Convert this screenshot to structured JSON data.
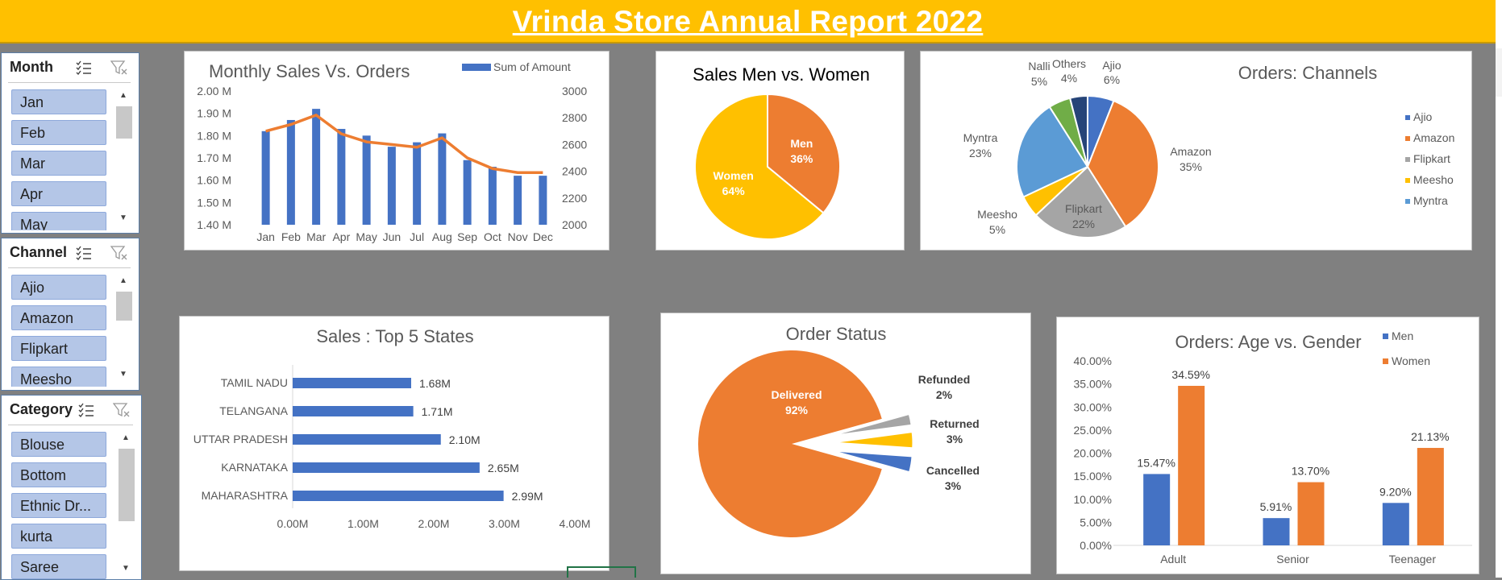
{
  "report_title": "Vrinda Store Annual Report 2022",
  "slicers": {
    "month": {
      "label": "Month",
      "items": [
        "Jan",
        "Feb",
        "Mar",
        "Apr",
        "May"
      ]
    },
    "channel": {
      "label": "Channel",
      "items": [
        "Ajio",
        "Amazon",
        "Flipkart",
        "Meesho"
      ]
    },
    "category": {
      "label": "Category",
      "items": [
        "Blouse",
        "Bottom",
        "Ethnic Dr...",
        "kurta",
        "Saree"
      ]
    }
  },
  "icons": {
    "multiselect": "multi-select-icon",
    "clear_filter": "clear-filter-icon",
    "scroll_up": "chevron-up-icon",
    "scroll_down": "chevron-down-icon"
  },
  "colors": {
    "banner": "#FFC000",
    "blue": "#4472C4",
    "orange": "#ED7D31",
    "gray": "#A5A5A5",
    "yellow": "#FFC000",
    "lightblue": "#5B9BD5",
    "green": "#70AD47",
    "navy": "#264478",
    "slicer_item": "#B4C6E7"
  },
  "chart_data": [
    {
      "type": "bar",
      "title": "Monthly Sales Vs. Orders",
      "legend": [
        "Sum of Amount"
      ],
      "legend_position": "top-right",
      "categories": [
        "Jan",
        "Feb",
        "Mar",
        "Apr",
        "May",
        "Jun",
        "Jul",
        "Aug",
        "Sep",
        "Oct",
        "Nov",
        "Dec"
      ],
      "series": [
        {
          "name": "Sum of Amount",
          "type": "bar",
          "axis": "left",
          "values": [
            1.82,
            1.87,
            1.92,
            1.83,
            1.8,
            1.75,
            1.77,
            1.81,
            1.69,
            1.66,
            1.62,
            1.62
          ]
        },
        {
          "type": "line",
          "axis": "right",
          "values": [
            2700,
            2750,
            2820,
            2680,
            2620,
            2600,
            2580,
            2650,
            2500,
            2420,
            2390,
            2390
          ]
        }
      ],
      "ylim_left": [
        1.4,
        2.0
      ],
      "yticks_left": [
        "1.40 M",
        "1.50 M",
        "1.60 M",
        "1.70 M",
        "1.80 M",
        "1.90 M",
        "2.00 M"
      ],
      "ylim_right": [
        2000,
        3000
      ],
      "yticks_right": [
        "2000",
        "2200",
        "2400",
        "2600",
        "2800",
        "3000"
      ]
    },
    {
      "type": "pie",
      "title": "Sales Men vs. Women",
      "slices": [
        {
          "label": "Men",
          "value": 36,
          "text": "36%"
        },
        {
          "label": "Women",
          "value": 64,
          "text": "64%"
        }
      ]
    },
    {
      "type": "pie",
      "title": "Orders: Channels",
      "legend": [
        "Ajio",
        "Amazon",
        "Flipkart",
        "Meesho",
        "Myntra"
      ],
      "legend_position": "right",
      "slices": [
        {
          "label": "Ajio",
          "value": 6,
          "text": "6%"
        },
        {
          "label": "Amazon",
          "value": 35,
          "text": "35%"
        },
        {
          "label": "Flipkart",
          "value": 22,
          "text": "22%"
        },
        {
          "label": "Meesho",
          "value": 5,
          "text": "5%"
        },
        {
          "label": "Myntra",
          "value": 23,
          "text": "23%"
        },
        {
          "label": "Nalli",
          "value": 5,
          "text": "5%"
        },
        {
          "label": "Others",
          "value": 4,
          "text": "4%"
        }
      ]
    },
    {
      "type": "bar",
      "orientation": "horizontal",
      "title": "Sales : Top 5 States",
      "categories": [
        "TAMIL NADU",
        "TELANGANA",
        "UTTAR PRADESH",
        "KARNATAKA",
        "MAHARASHTRA"
      ],
      "values": [
        1.68,
        1.71,
        2.1,
        2.65,
        2.99
      ],
      "value_labels": [
        "1.68M",
        "1.71M",
        "2.10M",
        "2.65M",
        "2.99M"
      ],
      "xlim": [
        0,
        4
      ],
      "xticks": [
        "0.00M",
        "1.00M",
        "2.00M",
        "3.00M",
        "4.00M"
      ]
    },
    {
      "type": "pie",
      "title": "Order Status",
      "slices": [
        {
          "label": "Delivered",
          "value": 92,
          "text": "92%"
        },
        {
          "label": "Refunded",
          "value": 2,
          "text": "2%"
        },
        {
          "label": "Returned",
          "value": 3,
          "text": "3%"
        },
        {
          "label": "Cancelled",
          "value": 3,
          "text": "3%"
        }
      ]
    },
    {
      "type": "bar",
      "title": "Orders: Age vs. Gender",
      "legend": [
        "Men",
        "Women"
      ],
      "legend_position": "top-right",
      "categories": [
        "Adult",
        "Senior",
        "Teenager"
      ],
      "series": [
        {
          "name": "Men",
          "values": [
            15.47,
            5.91,
            9.2
          ],
          "labels": [
            "15.47%",
            "5.91%",
            "9.20%"
          ]
        },
        {
          "name": "Women",
          "values": [
            34.59,
            13.7,
            21.13
          ],
          "labels": [
            "34.59%",
            "13.70%",
            "21.13%"
          ]
        }
      ],
      "ylim": [
        0,
        40
      ],
      "yticks": [
        "0.00%",
        "5.00%",
        "10.00%",
        "15.00%",
        "20.00%",
        "25.00%",
        "30.00%",
        "35.00%",
        "40.00%"
      ]
    }
  ]
}
